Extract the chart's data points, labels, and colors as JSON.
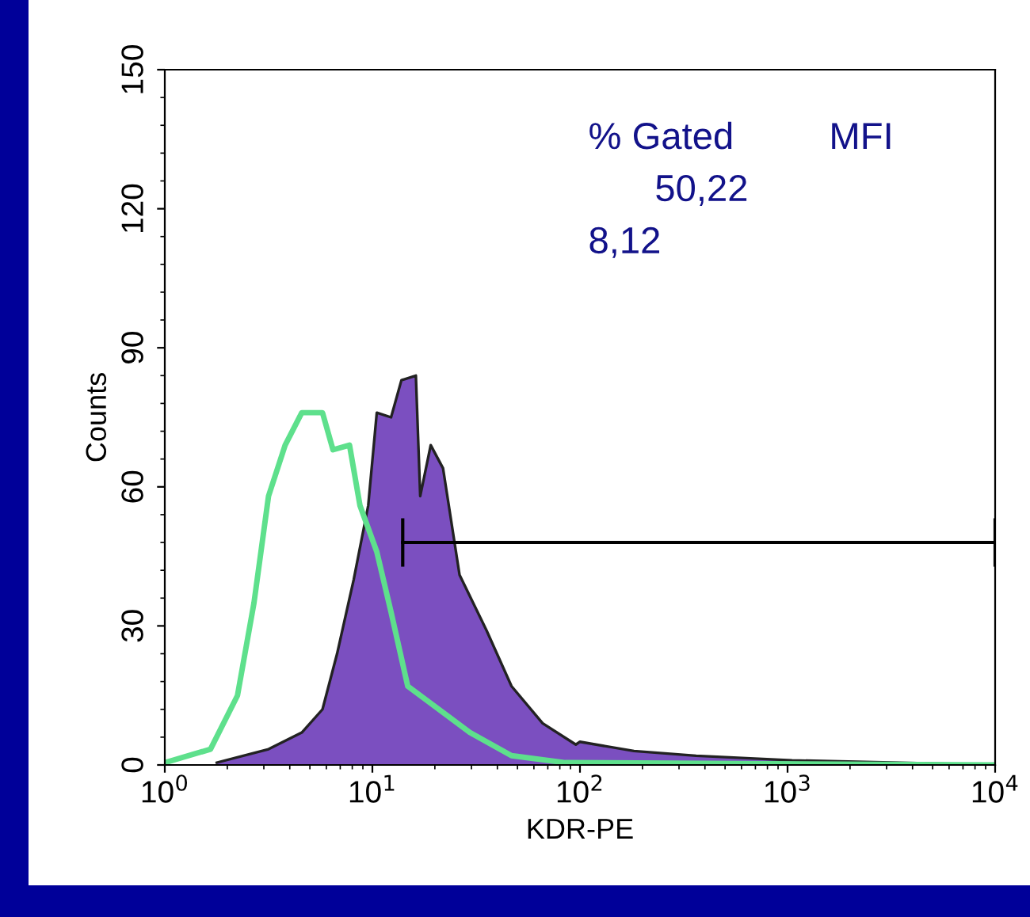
{
  "chart_data": {
    "type": "area",
    "xlabel": "KDR-PE",
    "ylabel": "Counts",
    "log": "x",
    "xlim": [
      1,
      10000
    ],
    "xticks": [
      {
        "value": 1,
        "label": "10$^{0}$"
      },
      {
        "value": 10,
        "label": "10$^{1}$"
      },
      {
        "value": 100,
        "label": "10$^{2}$"
      },
      {
        "value": 1000,
        "label": "10$^{3}$"
      },
      {
        "value": 10000,
        "label": "10$^{4}$"
      }
    ],
    "ylim": [
      0,
      150
    ],
    "yticks": [
      0,
      30,
      60,
      90,
      120,
      150
    ],
    "grid": false,
    "legend": false,
    "series": [
      {
        "color": "#7b4fc0",
        "x": [
          1.78,
          3.16,
          4.57,
          5.75,
          6.76,
          8.13,
          9.55,
          10.5,
          12.3,
          13.8,
          16.2,
          17.0,
          19.1,
          21.9,
          26.3,
          35.5,
          46.8,
          66.1,
          95.5,
          100,
          182,
          363,
          1050,
          10000
        ],
        "values": [
          0.5,
          3.4,
          7,
          12,
          24,
          40,
          56,
          76,
          75,
          83,
          84,
          58,
          69,
          64,
          41,
          29,
          17,
          9,
          4.4,
          5,
          3,
          2,
          1,
          0
        ]
      },
      {
        "type": "line",
        "color": "#5ee08c",
        "x": [
          1,
          1.66,
          2.24,
          2.69,
          3.16,
          3.8,
          4.57,
          5.75,
          6.46,
          7.76,
          8.71,
          10.5,
          12.3,
          14.8,
          20.9,
          29.5,
          46.8,
          85.1,
          10000
        ],
        "values": [
          0.5,
          3.4,
          15,
          35,
          58,
          69,
          76,
          76,
          68,
          69,
          56,
          46,
          33,
          17,
          12,
          7,
          2,
          0.5,
          0
        ]
      },
      {
        "type": "line",
        "color": "#000000",
        "x": [
          14,
          10000
        ],
        "values": [
          48,
          48
        ]
      }
    ],
    "annotations": [
      "% Gated",
      "MFI",
      "50,22",
      "8,12"
    ]
  }
}
